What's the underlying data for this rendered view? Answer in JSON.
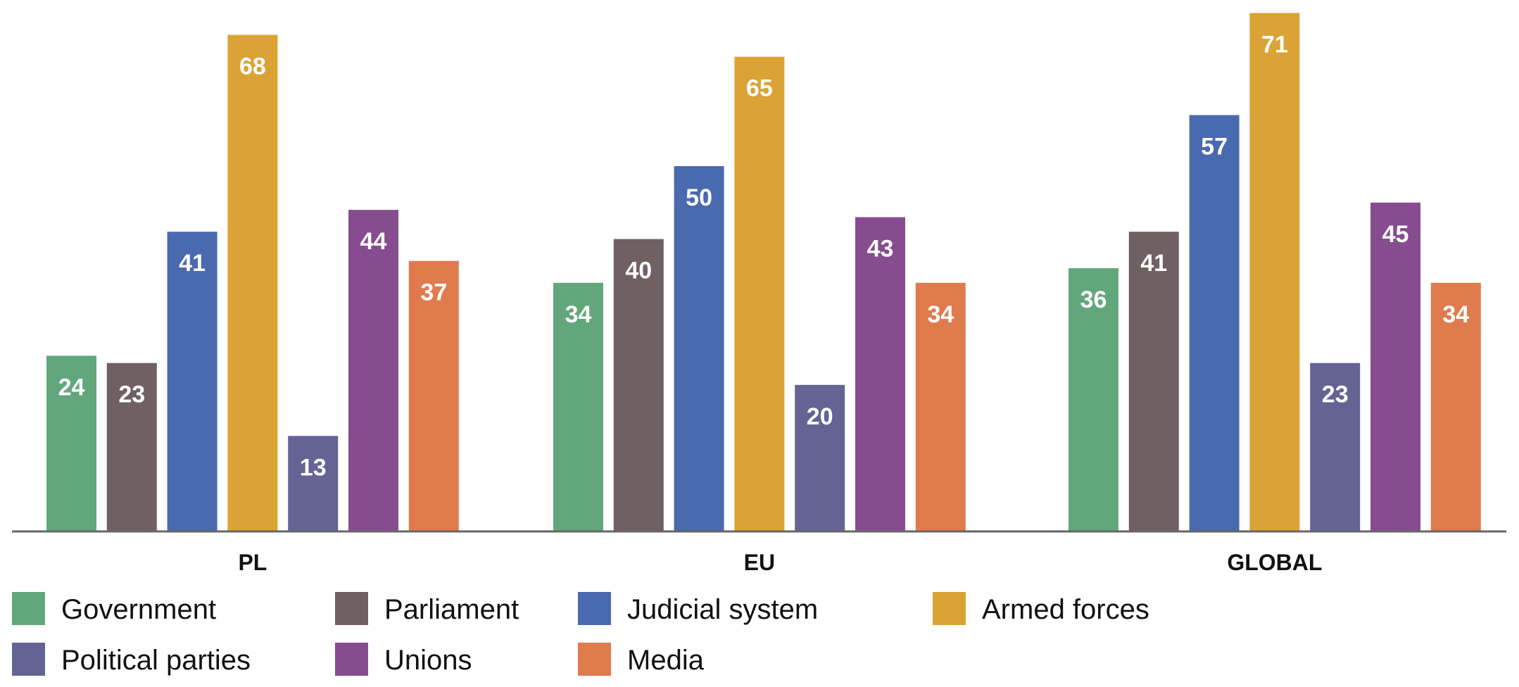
{
  "chart_data": {
    "type": "bar",
    "title": "",
    "xlabel": "",
    "ylabel": "",
    "ylim": [
      0,
      72
    ],
    "grid": false,
    "legend_position": "bottom",
    "categories": [
      "PL",
      "EU",
      "GLOBAL"
    ],
    "series": [
      {
        "name": "Government",
        "color": "#62A77B",
        "values": [
          24,
          34,
          36
        ]
      },
      {
        "name": "Parliament",
        "color": "#716063",
        "values": [
          23,
          40,
          41
        ]
      },
      {
        "name": "Judicial system",
        "color": "#4A6AAF",
        "values": [
          41,
          50,
          57
        ]
      },
      {
        "name": "Armed forces",
        "color": "#DBA336",
        "values": [
          68,
          65,
          71
        ]
      },
      {
        "name": "Political parties",
        "color": "#646394",
        "values": [
          13,
          20,
          23
        ]
      },
      {
        "name": "Unions",
        "color": "#874C8F",
        "values": [
          44,
          43,
          45
        ]
      },
      {
        "name": "Media",
        "color": "#E07B4E",
        "values": [
          37,
          34,
          34
        ]
      }
    ]
  }
}
